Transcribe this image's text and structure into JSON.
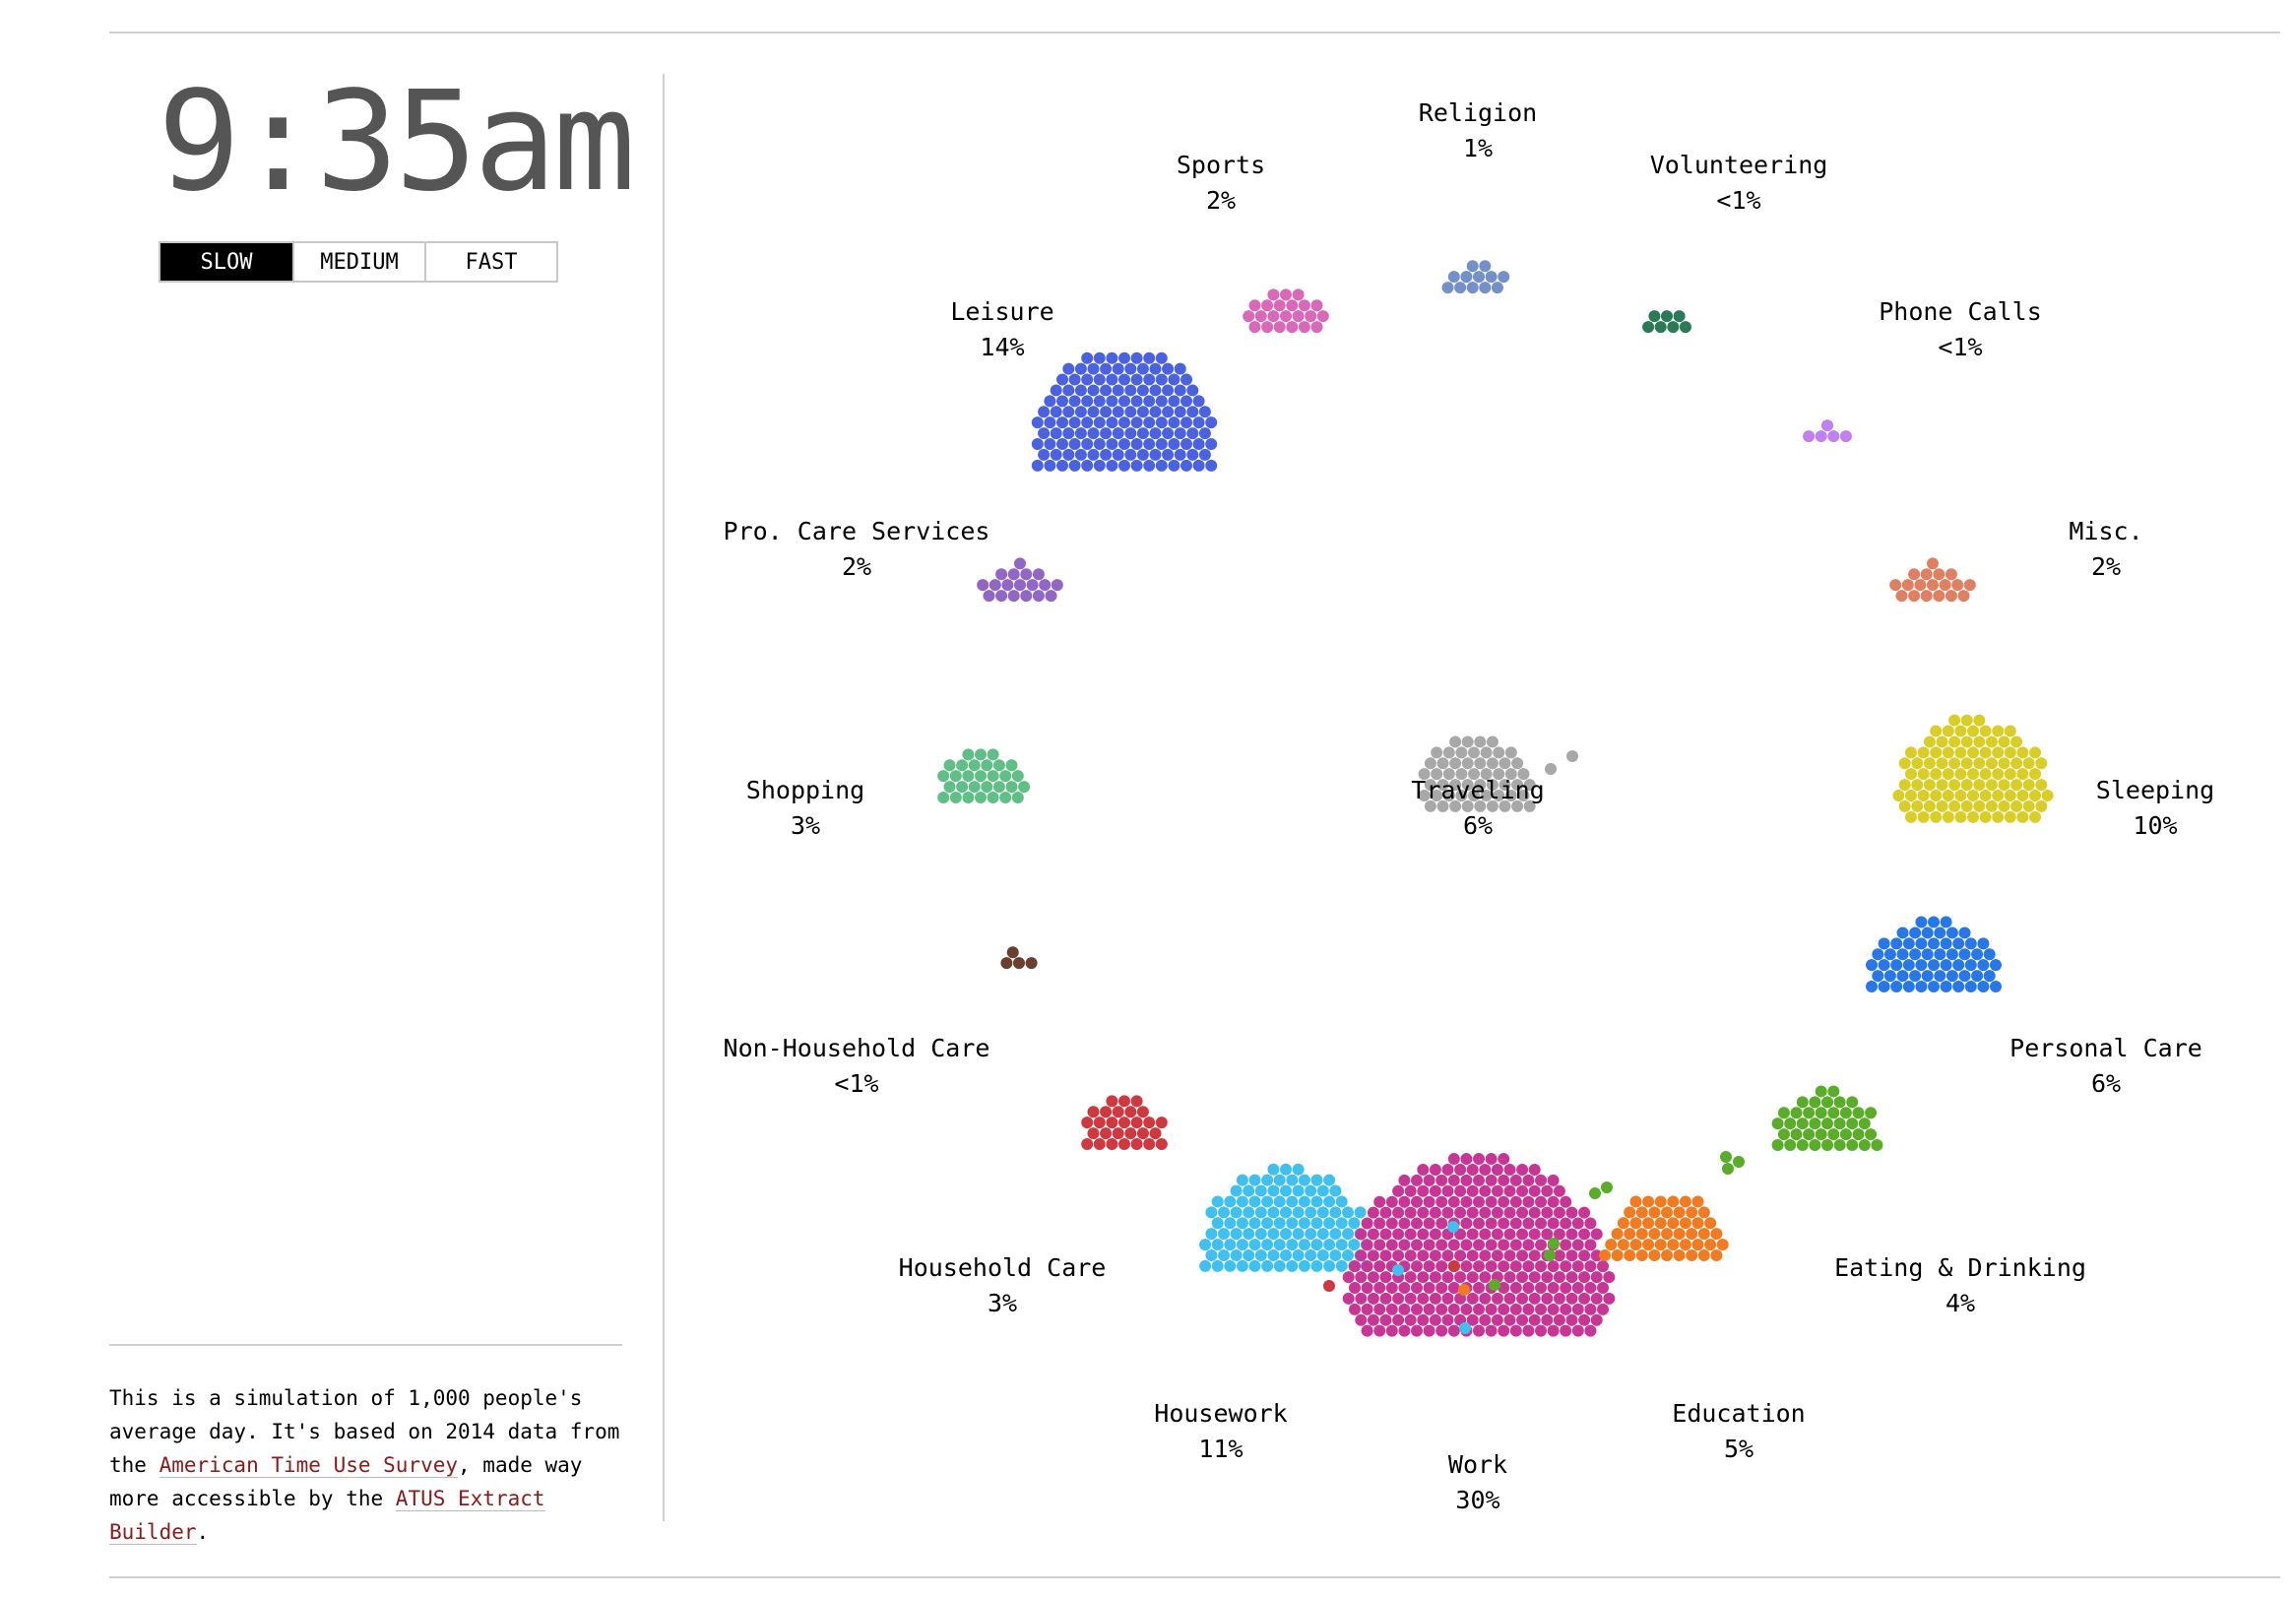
{
  "clock": {
    "time": "9:35am"
  },
  "speed": {
    "options": [
      "SLOW",
      "MEDIUM",
      "FAST"
    ],
    "selected": "SLOW"
  },
  "about": {
    "text1": "This is a simulation of 1,000 people's average day. It's based on 2014 data from the ",
    "link1": "American Time Use Survey",
    "text2": ", made way more accessible by the ",
    "link2": "ATUS Extract Builder",
    "text3": "."
  },
  "activities": [
    {
      "id": "religion",
      "name": "Religion",
      "pct": "1%",
      "color": "#7390c8",
      "count": 12
    },
    {
      "id": "sports",
      "name": "Sports",
      "pct": "2%",
      "color": "#d968b8",
      "count": 22
    },
    {
      "id": "volunteering",
      "name": "Volunteering",
      "pct": "<1%",
      "color": "#2a7a55",
      "count": 7
    },
    {
      "id": "leisure",
      "name": "Leisure",
      "pct": "14%",
      "color": "#4a62e0",
      "count": 140
    },
    {
      "id": "phone-calls",
      "name": "Phone Calls",
      "pct": "<1%",
      "color": "#c080f0",
      "count": 5
    },
    {
      "id": "pro-care",
      "name": "Pro. Care Services",
      "pct": "2%",
      "color": "#9266c4",
      "count": 18
    },
    {
      "id": "misc",
      "name": "Misc.",
      "pct": "2%",
      "color": "#e08062",
      "count": 18
    },
    {
      "id": "shopping",
      "name": "Shopping",
      "pct": "3%",
      "color": "#5fbf86",
      "count": 30
    },
    {
      "id": "traveling",
      "name": "Traveling",
      "pct": "6%",
      "color": "#a8a8a8",
      "count": 55
    },
    {
      "id": "sleeping",
      "name": "Sleeping",
      "pct": "10%",
      "color": "#d9cd27",
      "count": 100
    },
    {
      "id": "non-household-care",
      "name": "Non-Household Care",
      "pct": "<1%",
      "color": "#6b3f2f",
      "count": 4
    },
    {
      "id": "personal-care",
      "name": "Personal Care",
      "pct": "6%",
      "color": "#2877e8",
      "count": 60
    },
    {
      "id": "household-care",
      "name": "Household Care",
      "pct": "3%",
      "color": "#d03840",
      "count": 28
    },
    {
      "id": "eating",
      "name": "Eating & Drinking",
      "pct": "4%",
      "color": "#59ad28",
      "count": 40
    },
    {
      "id": "housework",
      "name": "Housework",
      "pct": "11%",
      "color": "#40c0ee",
      "count": 110
    },
    {
      "id": "work",
      "name": "Work",
      "pct": "30%",
      "color": "#c73595",
      "count": 300
    },
    {
      "id": "education",
      "name": "Education",
      "pct": "5%",
      "color": "#f07b20",
      "count": 50
    }
  ]
}
